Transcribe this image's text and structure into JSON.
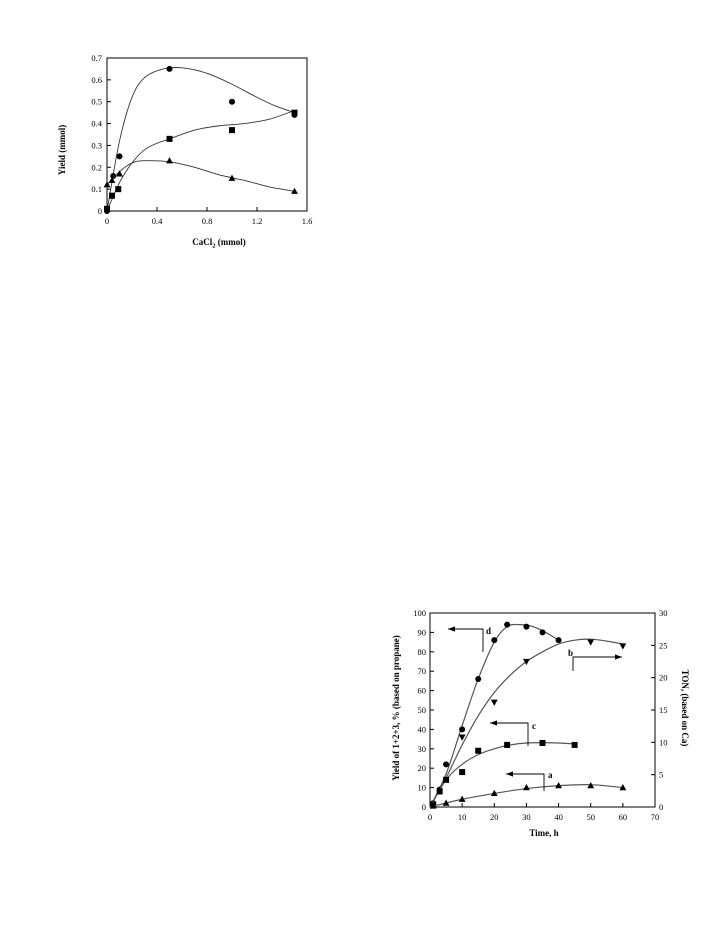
{
  "chart_data": [
    {
      "type": "scatter",
      "xlabel": "CaCl",
      "xlabel_sub": "2",
      "xlabel_suffix": " (mmol)",
      "ylabel": "Yield (mmol)",
      "xlim": [
        0,
        1.6
      ],
      "ylim": [
        0,
        0.7
      ],
      "xticks": [
        0,
        0.4,
        0.8,
        1.2,
        1.6
      ],
      "xtick_labels": [
        "0",
        "0.4",
        "0.8",
        "1.2",
        "1.6"
      ],
      "yticks": [
        0,
        0.1,
        0.2,
        0.3,
        0.4,
        0.5,
        0.6,
        0.7
      ],
      "ytick_labels": [
        "0",
        "0.1",
        "0.2",
        "0.3",
        "0.4",
        "0.5",
        "0.6",
        "0.7"
      ],
      "series": [
        {
          "marker": "circle",
          "points": [
            [
              0,
              0.0
            ],
            [
              0.05,
              0.16
            ],
            [
              0.1,
              0.25
            ],
            [
              0.5,
              0.65
            ],
            [
              1.0,
              0.5
            ],
            [
              1.5,
              0.44
            ]
          ],
          "curve": [
            [
              0,
              0.0
            ],
            [
              0.1,
              0.32
            ],
            [
              0.2,
              0.52
            ],
            [
              0.3,
              0.61
            ],
            [
              0.45,
              0.65
            ],
            [
              0.6,
              0.655
            ],
            [
              0.8,
              0.63
            ],
            [
              1.0,
              0.58
            ],
            [
              1.2,
              0.52
            ],
            [
              1.35,
              0.48
            ],
            [
              1.5,
              0.45
            ]
          ]
        },
        {
          "marker": "square",
          "points": [
            [
              0,
              0.01
            ],
            [
              0.04,
              0.07
            ],
            [
              0.09,
              0.1
            ],
            [
              0.5,
              0.33
            ],
            [
              1.0,
              0.37
            ],
            [
              1.5,
              0.45
            ]
          ],
          "curve": [
            [
              0,
              0.0
            ],
            [
              0.1,
              0.13
            ],
            [
              0.2,
              0.22
            ],
            [
              0.3,
              0.28
            ],
            [
              0.4,
              0.31
            ],
            [
              0.5,
              0.33
            ],
            [
              0.7,
              0.37
            ],
            [
              0.9,
              0.39
            ],
            [
              1.1,
              0.4
            ],
            [
              1.3,
              0.42
            ],
            [
              1.5,
              0.46
            ]
          ]
        },
        {
          "marker": "triangle",
          "points": [
            [
              0,
              0.12
            ],
            [
              0.04,
              0.14
            ],
            [
              0.1,
              0.17
            ],
            [
              0.5,
              0.23
            ],
            [
              1.0,
              0.15
            ],
            [
              1.5,
              0.09
            ]
          ],
          "curve": [
            [
              0,
              0.12
            ],
            [
              0.1,
              0.18
            ],
            [
              0.2,
              0.22
            ],
            [
              0.3,
              0.23
            ],
            [
              0.5,
              0.225
            ],
            [
              0.7,
              0.2
            ],
            [
              0.9,
              0.165
            ],
            [
              1.1,
              0.14
            ],
            [
              1.3,
              0.11
            ],
            [
              1.5,
              0.09
            ]
          ]
        }
      ]
    },
    {
      "type": "scatter",
      "xlabel": "Time, h",
      "ylabel": "Yield of 1+2+3, % (based on propane)",
      "y2label": "TON, (based on Ca)",
      "xlim": [
        0,
        70
      ],
      "ylim": [
        0,
        100
      ],
      "y2lim": [
        0,
        30
      ],
      "xticks": [
        0,
        10,
        20,
        30,
        40,
        50,
        60,
        70
      ],
      "xtick_labels": [
        "0",
        "10",
        "20",
        "30",
        "40",
        "50",
        "60",
        "70"
      ],
      "yticks": [
        0,
        10,
        20,
        30,
        40,
        50,
        60,
        70,
        80,
        90,
        100
      ],
      "ytick_labels": [
        "0",
        "10",
        "20",
        "30",
        "40",
        "50",
        "60",
        "70",
        "80",
        "90",
        "100"
      ],
      "y2ticks": [
        0,
        5,
        10,
        15,
        20,
        25,
        30
      ],
      "y2tick_labels": [
        "0",
        "5",
        "10",
        "15",
        "20",
        "25",
        "30"
      ],
      "series": [
        {
          "label": "d",
          "marker": "circle",
          "points": [
            [
              1,
              2
            ],
            [
              3,
              9
            ],
            [
              5,
              22
            ],
            [
              10,
              40
            ],
            [
              15,
              66
            ],
            [
              20,
              86
            ],
            [
              24,
              94
            ],
            [
              30,
              93
            ],
            [
              35,
              90
            ],
            [
              40,
              86
            ]
          ],
          "curve": [
            [
              0,
              0
            ],
            [
              5,
              17
            ],
            [
              10,
              42
            ],
            [
              15,
              66
            ],
            [
              20,
              85
            ],
            [
              24,
              93
            ],
            [
              28,
              94
            ],
            [
              32,
              93
            ],
            [
              36,
              90
            ],
            [
              40,
              86
            ]
          ]
        },
        {
          "label": "b",
          "marker": "triangle-down",
          "points": [
            [
              10,
              36
            ],
            [
              20,
              54
            ],
            [
              30,
              75
            ],
            [
              50,
              85
            ],
            [
              60,
              83
            ]
          ],
          "curve": [
            [
              0,
              0
            ],
            [
              5,
              15
            ],
            [
              10,
              32
            ],
            [
              15,
              47
            ],
            [
              20,
              59
            ],
            [
              25,
              68
            ],
            [
              30,
              75
            ],
            [
              35,
              80
            ],
            [
              40,
              84
            ],
            [
              45,
              86
            ],
            [
              50,
              86.5
            ],
            [
              55,
              85.5
            ],
            [
              60,
              84
            ]
          ]
        },
        {
          "label": "c",
          "marker": "square",
          "points": [
            [
              1,
              1
            ],
            [
              3,
              8
            ],
            [
              5,
              14
            ],
            [
              10,
              18
            ],
            [
              15,
              29
            ],
            [
              24,
              32
            ],
            [
              35,
              33
            ],
            [
              45,
              32
            ]
          ],
          "curve": [
            [
              0,
              0
            ],
            [
              5,
              14
            ],
            [
              10,
              22
            ],
            [
              15,
              27
            ],
            [
              20,
              30
            ],
            [
              25,
              32
            ],
            [
              30,
              33
            ],
            [
              35,
              33.2
            ],
            [
              40,
              33
            ],
            [
              45,
              32.5
            ]
          ]
        },
        {
          "label": "a",
          "marker": "triangle",
          "points": [
            [
              1,
              0.5
            ],
            [
              5,
              2
            ],
            [
              10,
              4
            ],
            [
              20,
              7
            ],
            [
              30,
              10
            ],
            [
              40,
              11
            ],
            [
              50,
              11
            ],
            [
              60,
              10
            ]
          ],
          "curve": [
            [
              0,
              0
            ],
            [
              10,
              4
            ],
            [
              20,
              7
            ],
            [
              30,
              9.5
            ],
            [
              40,
              11
            ],
            [
              50,
              11.5
            ],
            [
              60,
              10
            ]
          ]
        }
      ]
    }
  ]
}
